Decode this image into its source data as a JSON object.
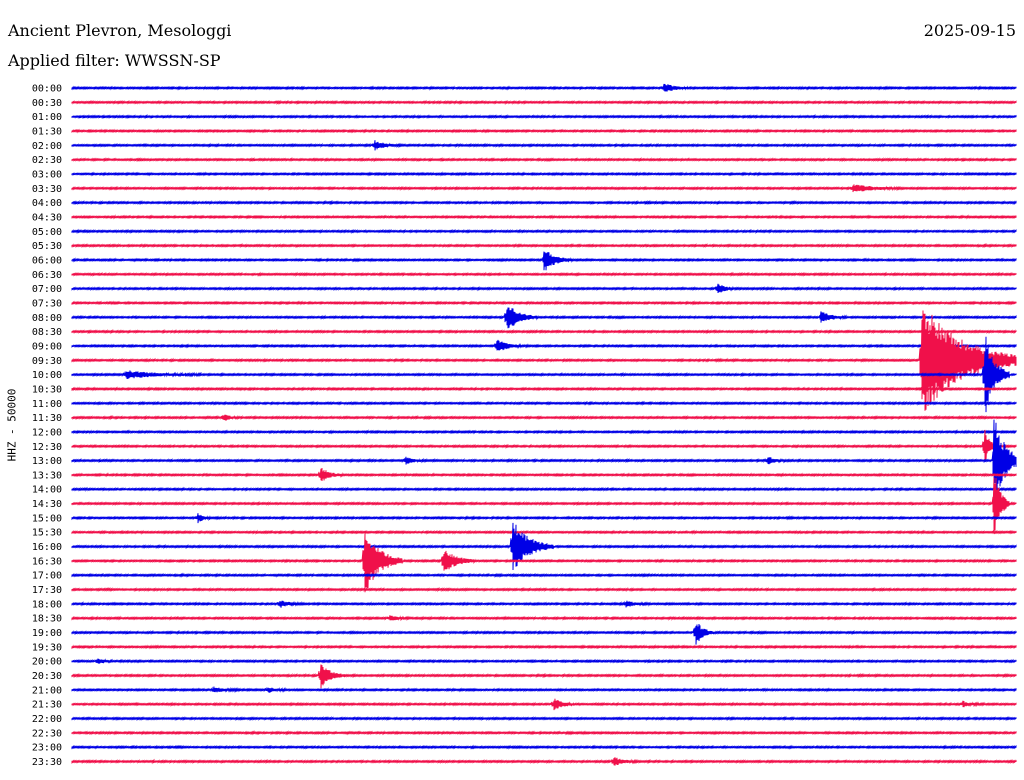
{
  "header": {
    "station": "Ancient Plevron, Mesologgi",
    "date": "2025-09-15",
    "filter": "Applied filter: WWSSN-SP"
  },
  "chart_data": {
    "type": "line",
    "ylabel": "HHZ - 50000",
    "colors": [
      "#0000e6",
      "#f0104a"
    ],
    "rows": [
      "00:00",
      "00:30",
      "01:00",
      "01:30",
      "02:00",
      "02:30",
      "03:00",
      "03:30",
      "04:00",
      "04:30",
      "05:00",
      "05:30",
      "06:00",
      "06:30",
      "07:00",
      "07:30",
      "08:00",
      "08:30",
      "09:00",
      "09:30",
      "10:00",
      "10:30",
      "11:00",
      "11:30",
      "12:00",
      "12:30",
      "13:00",
      "13:30",
      "14:00",
      "14:30",
      "15:00",
      "15:30",
      "16:00",
      "16:30",
      "17:00",
      "17:30",
      "18:00",
      "18:30",
      "19:00",
      "19:30",
      "20:00",
      "20:30",
      "21:00",
      "21:30",
      "22:00",
      "22:30",
      "23:00",
      "23:30"
    ],
    "x_range_minutes": [
      0,
      30
    ],
    "events": [
      {
        "row": "00:00",
        "t": 18.8,
        "amp": 5,
        "dur": 0.8
      },
      {
        "row": "02:00",
        "t": 9.6,
        "amp": 5,
        "dur": 0.8
      },
      {
        "row": "03:30",
        "t": 24.8,
        "amp": 4,
        "dur": 1.6
      },
      {
        "row": "06:00",
        "t": 15.0,
        "amp": 12,
        "dur": 0.9
      },
      {
        "row": "07:00",
        "t": 20.5,
        "amp": 7,
        "dur": 0.5
      },
      {
        "row": "08:00",
        "t": 13.8,
        "amp": 15,
        "dur": 1.0
      },
      {
        "row": "08:00",
        "t": 23.8,
        "amp": 6,
        "dur": 0.8
      },
      {
        "row": "09:00",
        "t": 13.5,
        "amp": 7,
        "dur": 0.8
      },
      {
        "row": "09:30",
        "t": 27.0,
        "amp": 60,
        "dur": 3.4
      },
      {
        "row": "10:00",
        "t": 1.7,
        "amp": 4,
        "dur": 2.4
      },
      {
        "row": "10:00",
        "t": 29.0,
        "amp": 45,
        "dur": 0.8
      },
      {
        "row": "11:30",
        "t": 4.8,
        "amp": 4,
        "dur": 0.5
      },
      {
        "row": "12:30",
        "t": 29.0,
        "amp": 20,
        "dur": 0.4
      },
      {
        "row": "13:00",
        "t": 29.3,
        "amp": 45,
        "dur": 1.0
      },
      {
        "row": "13:00",
        "t": 10.6,
        "amp": 4,
        "dur": 0.6
      },
      {
        "row": "13:00",
        "t": 22.1,
        "amp": 4,
        "dur": 0.6
      },
      {
        "row": "13:30",
        "t": 7.9,
        "amp": 8,
        "dur": 0.7
      },
      {
        "row": "14:30",
        "t": 29.3,
        "amp": 40,
        "dur": 0.5
      },
      {
        "row": "15:00",
        "t": 4.0,
        "amp": 5,
        "dur": 0.4
      },
      {
        "row": "16:00",
        "t": 14.0,
        "amp": 28,
        "dur": 1.3
      },
      {
        "row": "16:30",
        "t": 9.3,
        "amp": 35,
        "dur": 1.2
      },
      {
        "row": "16:30",
        "t": 11.8,
        "amp": 14,
        "dur": 1.0
      },
      {
        "row": "18:00",
        "t": 6.6,
        "amp": 4,
        "dur": 0.7
      },
      {
        "row": "18:00",
        "t": 17.6,
        "amp": 3,
        "dur": 0.8
      },
      {
        "row": "18:30",
        "t": 10.1,
        "amp": 3,
        "dur": 0.6
      },
      {
        "row": "19:00",
        "t": 19.8,
        "amp": 14,
        "dur": 0.6
      },
      {
        "row": "20:00",
        "t": 0.8,
        "amp": 3,
        "dur": 0.5
      },
      {
        "row": "20:30",
        "t": 7.9,
        "amp": 13,
        "dur": 0.8
      },
      {
        "row": "21:00",
        "t": 4.5,
        "amp": 3,
        "dur": 0.8
      },
      {
        "row": "21:00",
        "t": 6.2,
        "amp": 3,
        "dur": 0.6
      },
      {
        "row": "21:30",
        "t": 15.3,
        "amp": 6,
        "dur": 0.7
      },
      {
        "row": "21:30",
        "t": 28.3,
        "amp": 3,
        "dur": 0.6
      },
      {
        "row": "23:30",
        "t": 17.2,
        "amp": 5,
        "dur": 0.7
      }
    ]
  }
}
